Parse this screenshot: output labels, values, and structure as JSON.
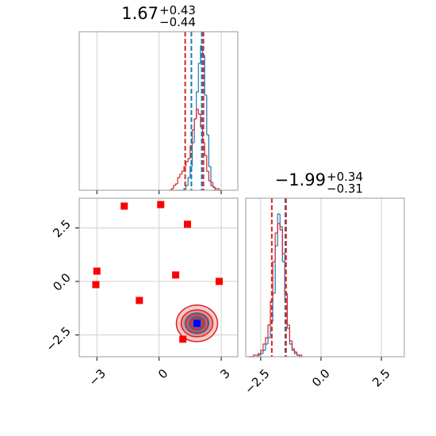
{
  "chart_data": [
    {
      "type": "histogram",
      "title": "1.67",
      "title_sup": "+0.43",
      "title_sub": "−0.44",
      "bins": [
        0.5,
        0.6,
        0.7,
        0.8,
        0.9,
        1.0,
        1.1,
        1.2,
        1.3,
        1.4,
        1.5,
        1.6,
        1.7,
        1.8,
        1.9,
        2.0,
        2.1,
        2.2,
        2.3,
        2.4,
        2.5,
        2.6,
        2.7,
        2.8,
        2.9,
        3.0
      ],
      "series": [
        {
          "color": "#1f77b4",
          "values": [
            0,
            0,
            0,
            0,
            0,
            0,
            0,
            1,
            3,
            8,
            15,
            30,
            45,
            62,
            80,
            91,
            85,
            60,
            35,
            15,
            5,
            2,
            0,
            0,
            0
          ]
        },
        {
          "color": "#d62728",
          "values": [
            0,
            1,
            3,
            4,
            8,
            10,
            12,
            15,
            18,
            20,
            28,
            38,
            45,
            51,
            48,
            40,
            30,
            22,
            12,
            6,
            3,
            2,
            1,
            1,
            0
          ]
        }
      ],
      "vlines": [
        {
          "color": "#d62728",
          "value": 1.26
        },
        {
          "color": "#1f77b4",
          "value": 1.56
        },
        {
          "color": "#1f77b4",
          "value": 2.06
        },
        {
          "color": "#d62728",
          "value": 2.14
        }
      ],
      "xlim": [
        -3.85,
        3.8
      ],
      "ylim": [
        0,
        100
      ],
      "xticks": [
        -3,
        0,
        3
      ],
      "grid": true
    },
    {
      "type": "scatter",
      "series": [
        {
          "color": "#ff0000",
          "x": [
            -1.68,
            0.08,
            1.37,
            -3.0,
            -3.05,
            -0.95,
            0.8,
            2.9,
            1.15
          ],
          "y": [
            3.52,
            3.59,
            2.67,
            0.48,
            -0.15,
            -0.89,
            0.3,
            0.0,
            -2.7
          ]
        },
        {
          "color": "#0000ff",
          "x": [
            1.83
          ],
          "y": [
            -1.96
          ]
        }
      ],
      "xlim": [
        -3.85,
        3.8
      ],
      "ylim": [
        -3.52,
        3.89
      ],
      "xticks": [
        {
          "value": -3,
          "label": "−3"
        },
        0,
        3
      ],
      "yticks": [
        {
          "value": 2.5,
          "label": "2.5"
        },
        {
          "value": 0,
          "label": "0.0"
        },
        {
          "value": -2.5,
          "label": "−2.5"
        }
      ],
      "grid": true
    },
    {
      "type": "histogram",
      "title": "−1.99",
      "title_sup": "+0.34",
      "title_sub": "−0.31",
      "bins": [
        -3.0,
        -2.9,
        -2.8,
        -2.7,
        -2.6,
        -2.5,
        -2.4,
        -2.3,
        -2.2,
        -2.1,
        -2.0,
        -1.9,
        -1.8,
        -1.7,
        -1.6,
        -1.5,
        -1.4,
        -1.3,
        -1.2,
        -1.1,
        -1.0,
        -0.9,
        -0.8
      ],
      "series": [
        {
          "color": "#1f77b4",
          "values": [
            0,
            0,
            0,
            0,
            1,
            2,
            4,
            8,
            12,
            22,
            40,
            70,
            90,
            82,
            60,
            35,
            18,
            8,
            4,
            2,
            1,
            0
          ]
        },
        {
          "color": "#d62728",
          "values": [
            0,
            0,
            1,
            1,
            2,
            4,
            8,
            12,
            20,
            35,
            60,
            78,
            84,
            80,
            65,
            40,
            20,
            10,
            5,
            3,
            1,
            1
          ]
        }
      ],
      "vlines": [
        {
          "color": "#d62728",
          "value": -2.04
        },
        {
          "color": "#1f77b4",
          "value": -1.48
        },
        {
          "color": "#d62728",
          "value": -1.45
        }
      ],
      "xlim": [
        -3.12,
        3.45
      ],
      "ylim": [
        0,
        100
      ],
      "xticks": [
        {
          "value": -2.5,
          "label": "−2.5"
        },
        {
          "value": 0,
          "label": "0.0"
        },
        {
          "value": 2.5,
          "label": "2.5"
        }
      ],
      "grid": true
    }
  ]
}
